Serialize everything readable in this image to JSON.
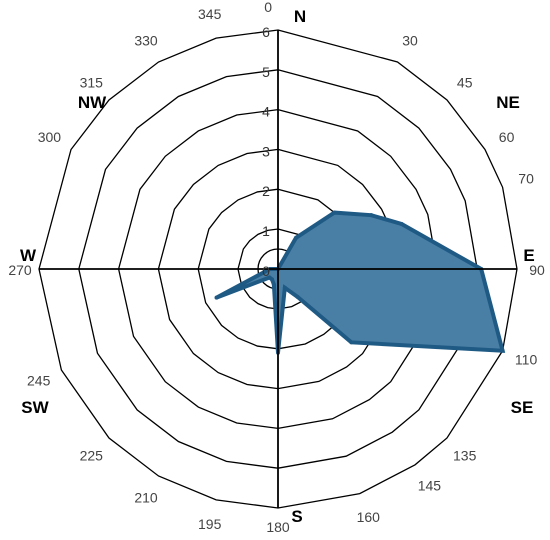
{
  "chart_data": {
    "type": "area",
    "projection": "polar-rose",
    "angle_ticks": [
      "0",
      "30",
      "45",
      "60",
      "70",
      "90",
      "110",
      "135",
      "145",
      "160",
      "180",
      "195",
      "210",
      "225",
      "245",
      "270",
      "300",
      "315",
      "330",
      "345"
    ],
    "cardinals": [
      {
        "label": "N",
        "angle": 0
      },
      {
        "label": "NE",
        "angle": 45
      },
      {
        "label": "E",
        "angle": 90
      },
      {
        "label": "SE",
        "angle": 135
      },
      {
        "label": "S",
        "angle": 180
      },
      {
        "label": "SW",
        "angle": 225
      },
      {
        "label": "W",
        "angle": 270
      },
      {
        "label": "NW",
        "angle": 315
      }
    ],
    "radial_ticks": [
      "0",
      "1",
      "2",
      "3",
      "4",
      "5",
      "6"
    ],
    "rlim": [
      0,
      6
    ],
    "grid": true,
    "series": [
      {
        "angles": [
          0,
          30,
          45,
          60,
          70,
          90,
          110,
          135,
          145,
          160,
          180,
          195,
          210,
          225,
          245,
          270,
          300,
          315,
          330,
          345
        ],
        "values": [
          0,
          0.9,
          2,
          2.7,
          3.3,
          5.1,
          6,
          2.6,
          0.85,
          0.5,
          2.1,
          0.4,
          0.3,
          0.3,
          1.7,
          0.2,
          0,
          0,
          0,
          0
        ]
      }
    ],
    "colors": {
      "fill": "#4a7fa5",
      "stroke": "#1f5a85",
      "grid": "#000000"
    }
  }
}
